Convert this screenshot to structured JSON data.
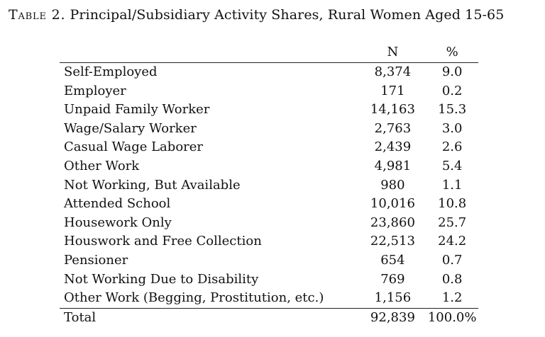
{
  "caption": {
    "label": "Table 2.",
    "title": "Principal/Subsidiary Activity Shares, Rural Women Aged 15-65"
  },
  "table": {
    "headers": {
      "category": "",
      "n": "N",
      "pct": "%"
    },
    "rows": [
      {
        "category": "Self-Employed",
        "n": "8,374",
        "pct": "9.0"
      },
      {
        "category": "Employer",
        "n": "171",
        "pct": "0.2"
      },
      {
        "category": "Unpaid Family Worker",
        "n": "14,163",
        "pct": "15.3"
      },
      {
        "category": "Wage/Salary Worker",
        "n": "2,763",
        "pct": "3.0"
      },
      {
        "category": "Casual Wage Laborer",
        "n": "2,439",
        "pct": "2.6"
      },
      {
        "category": "Other Work",
        "n": "4,981",
        "pct": "5.4"
      },
      {
        "category": "Not Working, But Available",
        "n": "980",
        "pct": "1.1"
      },
      {
        "category": "Attended School",
        "n": "10,016",
        "pct": "10.8"
      },
      {
        "category": "Housework Only",
        "n": "23,860",
        "pct": "25.7"
      },
      {
        "category": "Houswork and Free Collection",
        "n": "22,513",
        "pct": "24.2"
      },
      {
        "category": "Pensioner",
        "n": "654",
        "pct": "0.7"
      },
      {
        "category": "Not Working Due to Disability",
        "n": "769",
        "pct": "0.8"
      },
      {
        "category": "Other Work (Begging, Prostitution, etc.)",
        "n": "1,156",
        "pct": "1.2"
      }
    ],
    "total": {
      "category": "Total",
      "n": "92,839",
      "pct": "100.0%"
    }
  }
}
